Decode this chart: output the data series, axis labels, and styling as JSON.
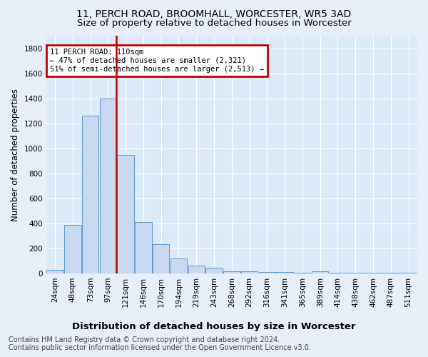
{
  "title1": "11, PERCH ROAD, BROOMHALL, WORCESTER, WR5 3AD",
  "title2": "Size of property relative to detached houses in Worcester",
  "xlabel": "Distribution of detached houses by size in Worcester",
  "ylabel": "Number of detached properties",
  "footer1": "Contains HM Land Registry data © Crown copyright and database right 2024.",
  "footer2": "Contains public sector information licensed under the Open Government Licence v3.0.",
  "annotation_line1": "11 PERCH ROAD: 110sqm",
  "annotation_line2": "← 47% of detached houses are smaller (2,321)",
  "annotation_line3": "51% of semi-detached houses are larger (2,513) →",
  "bar_categories": [
    "24sqm",
    "48sqm",
    "73sqm",
    "97sqm",
    "121sqm",
    "146sqm",
    "170sqm",
    "194sqm",
    "219sqm",
    "243sqm",
    "268sqm",
    "292sqm",
    "316sqm",
    "341sqm",
    "365sqm",
    "389sqm",
    "414sqm",
    "438sqm",
    "462sqm",
    "487sqm",
    "511sqm"
  ],
  "bar_values": [
    30,
    390,
    1260,
    1400,
    950,
    410,
    235,
    120,
    65,
    43,
    18,
    15,
    12,
    10,
    8,
    18,
    5,
    4,
    3,
    3,
    3
  ],
  "bar_color": "#c9d9ef",
  "bar_edge_color": "#5b9bd5",
  "vline_color": "#c00000",
  "vline_x": 3.45,
  "annotation_box_color": "#c00000",
  "ylim": [
    0,
    1900
  ],
  "yticks": [
    0,
    200,
    400,
    600,
    800,
    1000,
    1200,
    1400,
    1600,
    1800
  ],
  "bg_color": "#dce9f7",
  "grid_color": "#ffffff",
  "title1_fontsize": 10,
  "title2_fontsize": 9.5,
  "ylabel_fontsize": 8.5,
  "xlabel_fontsize": 9.5,
  "tick_fontsize": 7.5,
  "footer_fontsize": 7
}
